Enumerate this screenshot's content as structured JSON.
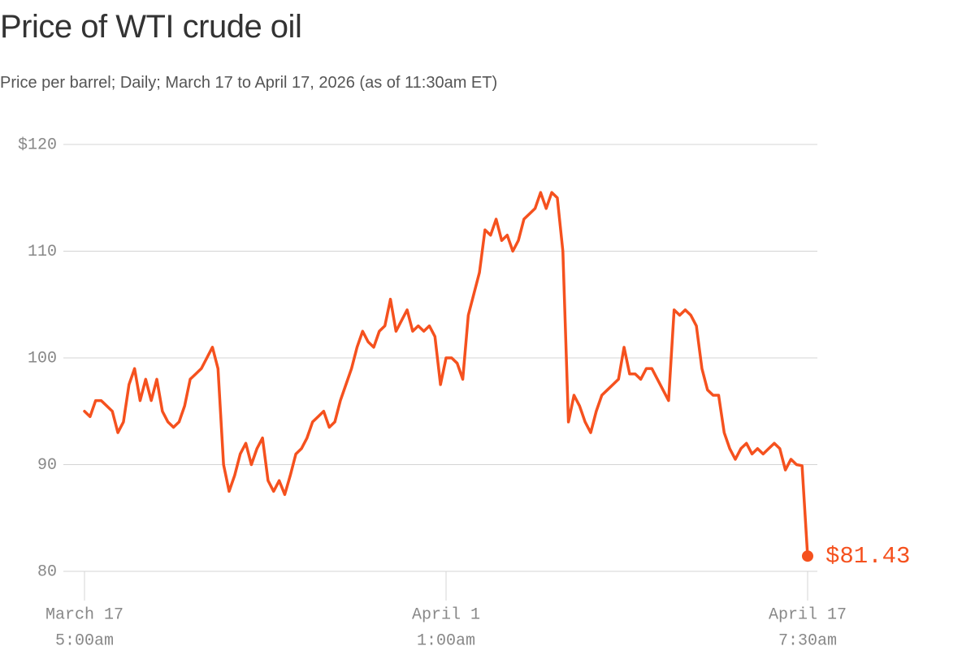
{
  "chart_data": {
    "type": "line",
    "title": "Price of WTI crude oil",
    "subtitle": "Price per barrel; Daily; March 17 to April 17, 2026 (as of 11:30am ET)",
    "color": "#f5511e",
    "grid": true,
    "ylim": [
      80,
      120
    ],
    "yticks": [
      80,
      90,
      100,
      110,
      {
        "value": 120,
        "label": "$120"
      }
    ],
    "categories": [
      [
        "March 17",
        "5:00am"
      ],
      null,
      null,
      null,
      null,
      null,
      null,
      null,
      null,
      null,
      null,
      null,
      null,
      null,
      null,
      null,
      null,
      null,
      null,
      null,
      null,
      null,
      null,
      null,
      null,
      null,
      null,
      null,
      null,
      null,
      null,
      null,
      null,
      null,
      null,
      null,
      null,
      null,
      null,
      null,
      null,
      null,
      null,
      null,
      null,
      null,
      null,
      null,
      null,
      null,
      null,
      null,
      null,
      null,
      null,
      null,
      null,
      null,
      null,
      null,
      null,
      null,
      null,
      null,
      null,
      [
        "April 1",
        "1:00am"
      ],
      null,
      null,
      null,
      null,
      null,
      null,
      null,
      null,
      null,
      null,
      null,
      null,
      null,
      null,
      null,
      null,
      null,
      null,
      null,
      null,
      null,
      null,
      null,
      null,
      null,
      null,
      null,
      null,
      null,
      null,
      null,
      null,
      null,
      null,
      null,
      null,
      null,
      null,
      null,
      null,
      null,
      null,
      null,
      null,
      null,
      null,
      null,
      null,
      null,
      null,
      null,
      null,
      null,
      null,
      null,
      null,
      null,
      null,
      null,
      null,
      null,
      null,
      null,
      null,
      [
        "April 17",
        "7:30am"
      ]
    ],
    "values": [
      95,
      94.5,
      96,
      96,
      95.5,
      95,
      93,
      94,
      97.5,
      99,
      96,
      98,
      96,
      98,
      95,
      94,
      93.5,
      94,
      95.5,
      98,
      98.5,
      99,
      100,
      101,
      99,
      90,
      87.5,
      89,
      91,
      92,
      90,
      91.5,
      92.5,
      88.5,
      87.5,
      88.5,
      87.2,
      89,
      91,
      91.5,
      92.5,
      94,
      94.5,
      95,
      93.5,
      94,
      96,
      97.5,
      99,
      101,
      102.5,
      101.5,
      101,
      102.5,
      103,
      105.5,
      102.5,
      103.5,
      104.5,
      102.5,
      103,
      102.5,
      103,
      102,
      97.5,
      100,
      100,
      99.5,
      98,
      104,
      106,
      108,
      112,
      111.5,
      113,
      111,
      111.5,
      110,
      111,
      113,
      113.5,
      114,
      115.5,
      114,
      115.5,
      115,
      110,
      94,
      96.5,
      95.5,
      94,
      93,
      95,
      96.5,
      97,
      97.5,
      98,
      101,
      98.5,
      98.5,
      98,
      99,
      99,
      98,
      97,
      96,
      104.5,
      104,
      104.5,
      104,
      103,
      99,
      97,
      96.5,
      96.5,
      93,
      91.5,
      90.5,
      91.5,
      92,
      91,
      91.5,
      91,
      91.5,
      92,
      91.5,
      89.5,
      90.5,
      90,
      89.9,
      81.43
    ],
    "value_labels": [
      null,
      null,
      null,
      null,
      null,
      null,
      null,
      null,
      null,
      null,
      null,
      null,
      null,
      null,
      null,
      null,
      null,
      null,
      null,
      null,
      null,
      null,
      null,
      null,
      null,
      null,
      null,
      null,
      null,
      null,
      null,
      null,
      null,
      null,
      null,
      null,
      null,
      null,
      null,
      null,
      null,
      null,
      null,
      null,
      null,
      null,
      null,
      null,
      null,
      null,
      null,
      null,
      null,
      null,
      null,
      null,
      null,
      null,
      null,
      null,
      null,
      null,
      null,
      null,
      null,
      null,
      null,
      null,
      null,
      null,
      null,
      null,
      null,
      null,
      null,
      null,
      null,
      null,
      null,
      null,
      null,
      null,
      null,
      null,
      null,
      null,
      null,
      null,
      null,
      null,
      null,
      null,
      null,
      null,
      null,
      null,
      null,
      null,
      null,
      null,
      null,
      null,
      null,
      null,
      null,
      null,
      null,
      null,
      null,
      null,
      null,
      null,
      null,
      null,
      null,
      null,
      null,
      null,
      null,
      null,
      null,
      null,
      null,
      null,
      null,
      null,
      null,
      null,
      null,
      null,
      "$81.43"
    ]
  }
}
